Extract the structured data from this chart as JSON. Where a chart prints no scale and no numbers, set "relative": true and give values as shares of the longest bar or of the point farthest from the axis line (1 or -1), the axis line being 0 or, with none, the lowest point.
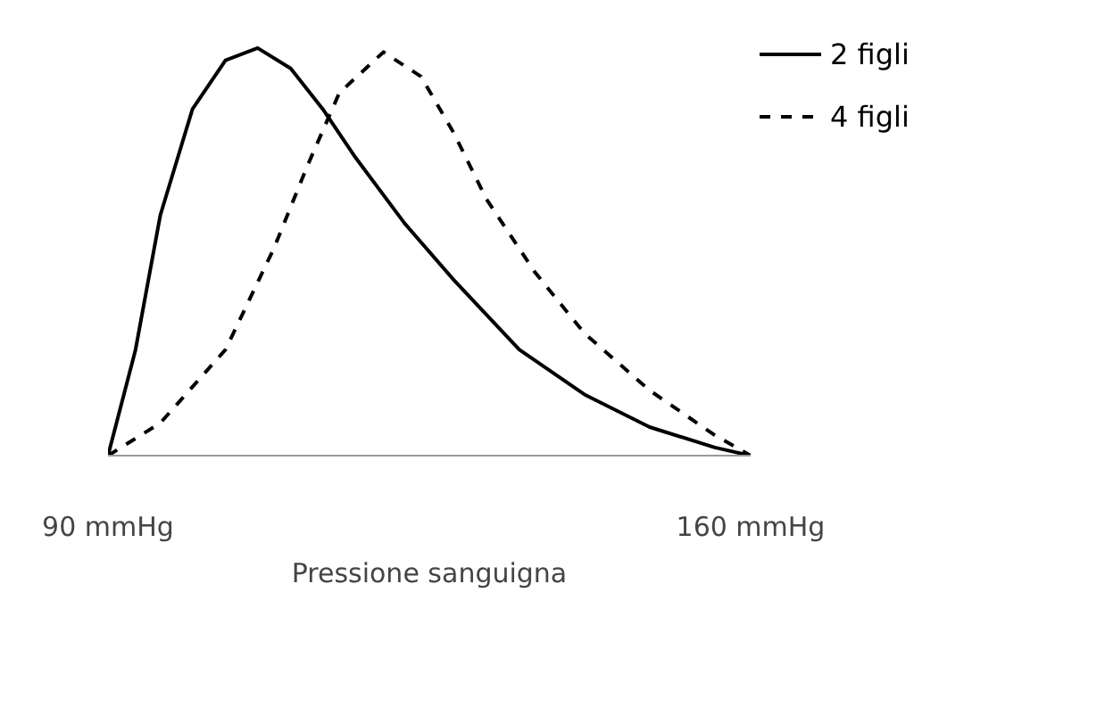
{
  "chart_data": {
    "type": "line",
    "relative": true,
    "xlabel": "Pressione sanguigna",
    "xlim": [
      90,
      160
    ],
    "xticks": [
      {
        "value": 90,
        "label": "90 mmHg"
      },
      {
        "value": 160,
        "label": "160 mmHg"
      }
    ],
    "legend": "top right",
    "grid": false,
    "marker": "none",
    "series": [
      {
        "name": "2 figli",
        "color": "#000000",
        "line_style": "solid",
        "x": [
          90,
          93.0,
          95.7,
          99.2,
          102.8,
          106.3,
          109.9,
          113.4,
          117.0,
          122.3,
          127.7,
          134.8,
          141.9,
          149.0,
          156.1,
          160
        ],
        "values": [
          0,
          0.26,
          0.59,
          0.85,
          0.97,
          1,
          0.95,
          0.85,
          0.73,
          0.57,
          0.43,
          0.26,
          0.15,
          0.07,
          0.02,
          0
        ]
      },
      {
        "name": "4 figli",
        "color": "#000000",
        "line_style": "dashed",
        "x": [
          90,
          95.7,
          102.8,
          108.1,
          111.7,
          115.2,
          120.0,
          124.1,
          127.7,
          131.2,
          136.5,
          141.9,
          149.0,
          156.1,
          160
        ],
        "values": [
          0,
          0.08,
          0.26,
          0.51,
          0.71,
          0.89,
          0.99,
          0.93,
          0.79,
          0.63,
          0.45,
          0.3,
          0.16,
          0.05,
          0
        ]
      }
    ]
  }
}
